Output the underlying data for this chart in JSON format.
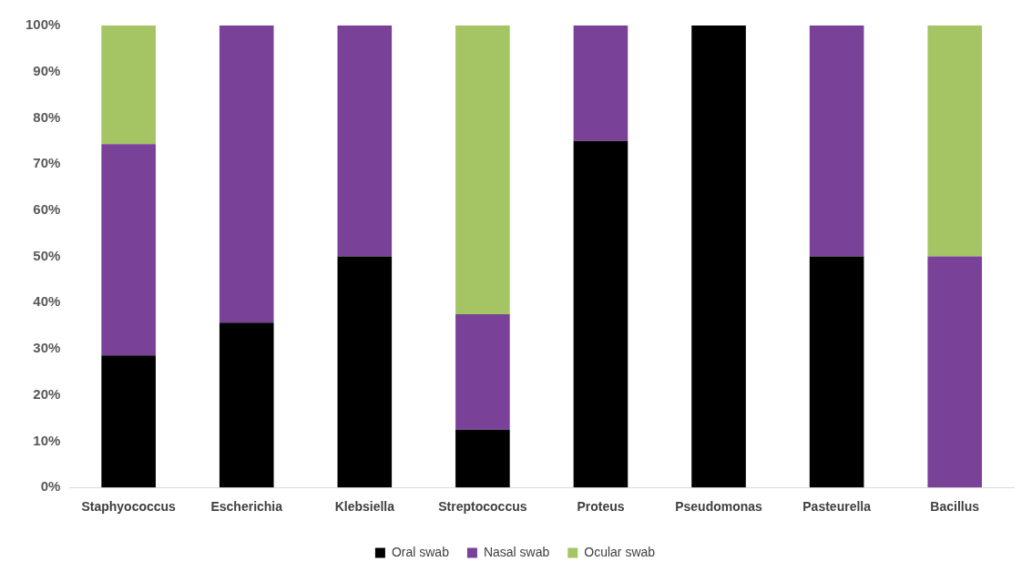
{
  "chart_data": {
    "type": "bar",
    "stacked": true,
    "categories": [
      "Staphyococcus",
      "Escherichia",
      "Klebsiella",
      "Streptococcus",
      "Proteus",
      "Pseudomonas",
      "Pasteurella",
      "Bacillus"
    ],
    "series": [
      {
        "name": "Oral swab",
        "color": "#000000",
        "values": [
          28.6,
          35.7,
          50,
          12.5,
          75,
          100,
          50,
          0
        ]
      },
      {
        "name": "Nasal swab",
        "color": "#7a4199",
        "values": [
          45.7,
          64.3,
          50,
          25,
          25,
          0,
          50,
          50
        ]
      },
      {
        "name": "Ocular swab",
        "color": "#a5c464",
        "values": [
          25.7,
          0,
          0,
          62.5,
          0,
          0,
          0,
          50
        ]
      }
    ],
    "ylim": [
      0,
      100
    ],
    "yticks": [
      {
        "value": 0,
        "label": "0%"
      },
      {
        "value": 10,
        "label": "10%"
      },
      {
        "value": 20,
        "label": "20%"
      },
      {
        "value": 30,
        "label": "30%"
      },
      {
        "value": 40,
        "label": "40%"
      },
      {
        "value": 50,
        "label": "50%"
      },
      {
        "value": 60,
        "label": "60%"
      },
      {
        "value": 70,
        "label": "70%"
      },
      {
        "value": 80,
        "label": "80%"
      },
      {
        "value": 90,
        "label": "90%"
      },
      {
        "value": 100,
        "label": "100%"
      }
    ],
    "grid": false,
    "legend": "bottom"
  }
}
